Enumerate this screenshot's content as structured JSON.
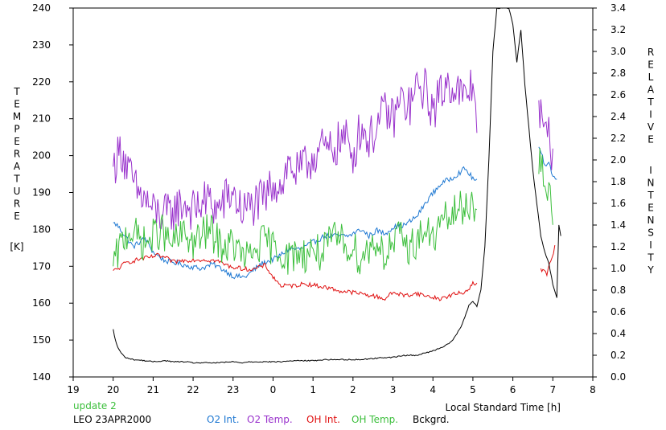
{
  "chart_data": {
    "type": "line",
    "title": "",
    "xlabel": "Local Standard Time [h]",
    "ylabel_left": "TEMPERATURE [K]",
    "ylabel_left_letters": [
      "T",
      "E",
      "M",
      "P",
      "E",
      "R",
      "A",
      "T",
      "U",
      "R",
      "E"
    ],
    "ylabel_left_unit": "[K]",
    "ylabel_right": "RELATIVE INTENSITY",
    "ylabel_right_word1": [
      "R",
      "E",
      "L",
      "A",
      "T",
      "I",
      "V",
      "E"
    ],
    "ylabel_right_word2": [
      "I",
      "N",
      "T",
      "E",
      "N",
      "S",
      "I",
      "T",
      "Y"
    ],
    "x_ticks": [
      "19",
      "20",
      "21",
      "22",
      "23",
      "0",
      "1",
      "2",
      "3",
      "4",
      "5",
      "6",
      "7",
      "8"
    ],
    "x_range": [
      19,
      32
    ],
    "y_left_ticks": [
      "140",
      "150",
      "160",
      "170",
      "180",
      "190",
      "200",
      "210",
      "220",
      "230",
      "240"
    ],
    "y_left_range": [
      140,
      240
    ],
    "y_right_ticks": [
      "0.0",
      "0.2",
      "0.4",
      "0.6",
      "0.8",
      "1.0",
      "1.2",
      "1.4",
      "1.6",
      "1.8",
      "2.0",
      "2.2",
      "2.4",
      "2.6",
      "2.8",
      "3.0",
      "3.2",
      "3.4"
    ],
    "y_right_range": [
      0,
      3.4
    ],
    "grid": false,
    "legend_position": "bottom",
    "notes": {
      "update": "update 2",
      "station": "LEO 23APR2000"
    },
    "series": [
      {
        "name": "O2 Int.",
        "axis": "right",
        "color": "#1e78d2",
        "x": [
          20.0,
          20.1,
          20.3,
          20.5,
          20.8,
          21.0,
          21.3,
          21.6,
          21.9,
          22.2,
          22.5,
          22.8,
          23.0,
          23.3,
          23.5,
          23.7,
          23.9,
          24.1,
          24.4,
          24.7,
          25.0,
          25.3,
          25.6,
          25.9,
          26.2,
          26.4,
          26.6,
          26.8,
          27.0,
          27.3,
          27.6,
          27.9,
          28.2,
          28.5,
          28.8,
          29.0,
          29.1,
          30.65,
          30.8,
          30.9,
          31.0,
          31.1
        ],
        "y": [
          1.42,
          1.4,
          1.3,
          1.2,
          1.28,
          1.15,
          1.07,
          1.05,
          1.02,
          1.0,
          1.04,
          0.98,
          0.93,
          0.92,
          0.98,
          1.04,
          1.07,
          1.1,
          1.18,
          1.18,
          1.24,
          1.3,
          1.3,
          1.3,
          1.36,
          1.3,
          1.35,
          1.32,
          1.38,
          1.4,
          1.48,
          1.65,
          1.78,
          1.84,
          1.92,
          1.83,
          1.8,
          2.12,
          1.96,
          1.98,
          1.85,
          1.82
        ]
      },
      {
        "name": "O2 Temp.",
        "axis": "left",
        "color": "#9932cc",
        "x": [
          20.0,
          20.2,
          20.4,
          20.6,
          20.8,
          21.0,
          21.2,
          21.4,
          21.6,
          21.8,
          22.0,
          22.2,
          22.4,
          22.6,
          22.8,
          23.0,
          23.2,
          23.4,
          23.6,
          23.8,
          24.0,
          24.2,
          24.4,
          24.6,
          24.8,
          25.0,
          25.2,
          25.4,
          25.6,
          25.8,
          26.0,
          26.2,
          26.4,
          26.6,
          26.8,
          27.0,
          27.2,
          27.4,
          27.6,
          27.8,
          28.0,
          28.2,
          28.4,
          28.6,
          28.8,
          29.0,
          29.1,
          30.65,
          30.7,
          30.8,
          30.9,
          31.0
        ],
        "y": [
          197,
          202,
          195,
          190,
          188,
          185,
          184,
          184,
          186,
          187,
          185,
          187,
          188,
          185,
          188,
          190,
          185,
          186,
          187,
          188,
          193,
          192,
          198,
          195,
          197,
          200,
          202,
          201,
          203,
          205,
          200,
          208,
          204,
          208,
          212,
          210,
          215,
          213,
          218,
          218,
          212,
          217,
          220,
          218,
          215,
          220,
          210,
          215,
          210,
          205,
          206,
          200
        ]
      },
      {
        "name": "OH Int.",
        "axis": "right",
        "color": "#e01010",
        "x": [
          20.0,
          20.1,
          20.3,
          20.5,
          20.7,
          20.9,
          21.1,
          21.3,
          21.5,
          21.7,
          22.0,
          22.3,
          22.6,
          22.9,
          23.2,
          23.5,
          23.8,
          24.0,
          24.2,
          24.5,
          24.8,
          25.1,
          25.4,
          25.7,
          26.0,
          26.3,
          26.6,
          26.8,
          27.0,
          27.3,
          27.6,
          27.9,
          28.2,
          28.5,
          28.8,
          29.0,
          29.1,
          30.7,
          30.75,
          30.85,
          30.95,
          31.05
        ],
        "y": [
          0.98,
          0.99,
          1.05,
          1.07,
          1.09,
          1.1,
          1.12,
          1.1,
          1.06,
          1.07,
          1.08,
          1.08,
          1.07,
          1.02,
          1.0,
          0.99,
          1.03,
          0.92,
          0.84,
          0.84,
          0.86,
          0.84,
          0.82,
          0.79,
          0.78,
          0.76,
          0.74,
          0.72,
          0.78,
          0.75,
          0.77,
          0.74,
          0.72,
          0.76,
          0.78,
          0.86,
          0.86,
          1.0,
          0.98,
          0.95,
          1.07,
          1.2
        ]
      },
      {
        "name": "OH Temp.",
        "axis": "left",
        "color": "#3cbf3c",
        "x": [
          20.0,
          20.2,
          20.4,
          20.6,
          20.8,
          21.0,
          21.2,
          21.4,
          21.6,
          21.8,
          22.0,
          22.2,
          22.4,
          22.6,
          22.8,
          23.0,
          23.2,
          23.4,
          23.6,
          23.8,
          24.0,
          24.2,
          24.4,
          24.6,
          24.8,
          25.0,
          25.2,
          25.4,
          25.6,
          25.8,
          26.0,
          26.2,
          26.4,
          26.6,
          26.8,
          27.0,
          27.2,
          27.4,
          27.6,
          27.8,
          28.0,
          28.2,
          28.4,
          28.6,
          28.8,
          29.0,
          29.1,
          30.65,
          30.7,
          30.8,
          30.9,
          31.0
        ],
        "y": [
          170,
          176,
          180,
          178,
          176,
          178,
          180,
          176,
          177,
          179,
          176,
          178,
          180,
          177,
          175,
          176,
          173,
          172,
          175,
          177,
          175,
          174,
          172,
          174,
          173,
          175,
          173,
          176,
          178,
          176,
          175,
          172,
          175,
          177,
          173,
          176,
          178,
          175,
          177,
          180,
          177,
          182,
          183,
          185,
          186,
          188,
          185,
          195,
          200,
          187,
          192,
          185
        ]
      },
      {
        "name": "Bckgrd.",
        "axis": "right",
        "color": "#000000",
        "x": [
          20.0,
          20.03,
          20.07,
          20.12,
          20.2,
          20.3,
          20.5,
          20.8,
          21.0,
          21.3,
          21.5,
          21.8,
          22.0,
          22.3,
          22.6,
          23.0,
          23.2,
          23.4,
          23.8,
          24.0,
          24.2,
          24.5,
          24.8,
          25.0,
          25.3,
          25.6,
          25.9,
          26.2,
          26.5,
          26.8,
          27.0,
          27.3,
          27.6,
          27.8,
          28.0,
          28.2,
          28.4,
          28.5,
          28.6,
          28.7,
          28.8,
          28.9,
          29.0,
          29.1,
          29.2,
          29.3,
          29.4,
          29.5,
          29.6,
          29.7,
          29.8,
          29.9,
          30.0,
          30.1,
          30.2,
          30.3,
          30.4,
          30.5,
          30.6,
          30.7,
          30.8,
          30.9,
          31.0,
          31.1,
          31.15,
          31.2
        ],
        "y": [
          0.44,
          0.38,
          0.32,
          0.27,
          0.22,
          0.18,
          0.16,
          0.15,
          0.14,
          0.15,
          0.14,
          0.14,
          0.13,
          0.13,
          0.13,
          0.14,
          0.13,
          0.14,
          0.14,
          0.14,
          0.14,
          0.15,
          0.15,
          0.15,
          0.16,
          0.16,
          0.16,
          0.16,
          0.17,
          0.18,
          0.18,
          0.2,
          0.2,
          0.22,
          0.24,
          0.27,
          0.31,
          0.34,
          0.4,
          0.46,
          0.55,
          0.66,
          0.7,
          0.65,
          0.8,
          1.2,
          2.0,
          3.0,
          3.4,
          3.4,
          3.4,
          3.4,
          3.25,
          2.9,
          3.2,
          2.7,
          2.3,
          1.9,
          1.6,
          1.3,
          1.15,
          1.05,
          0.85,
          0.73,
          1.4,
          1.3
        ]
      }
    ]
  }
}
